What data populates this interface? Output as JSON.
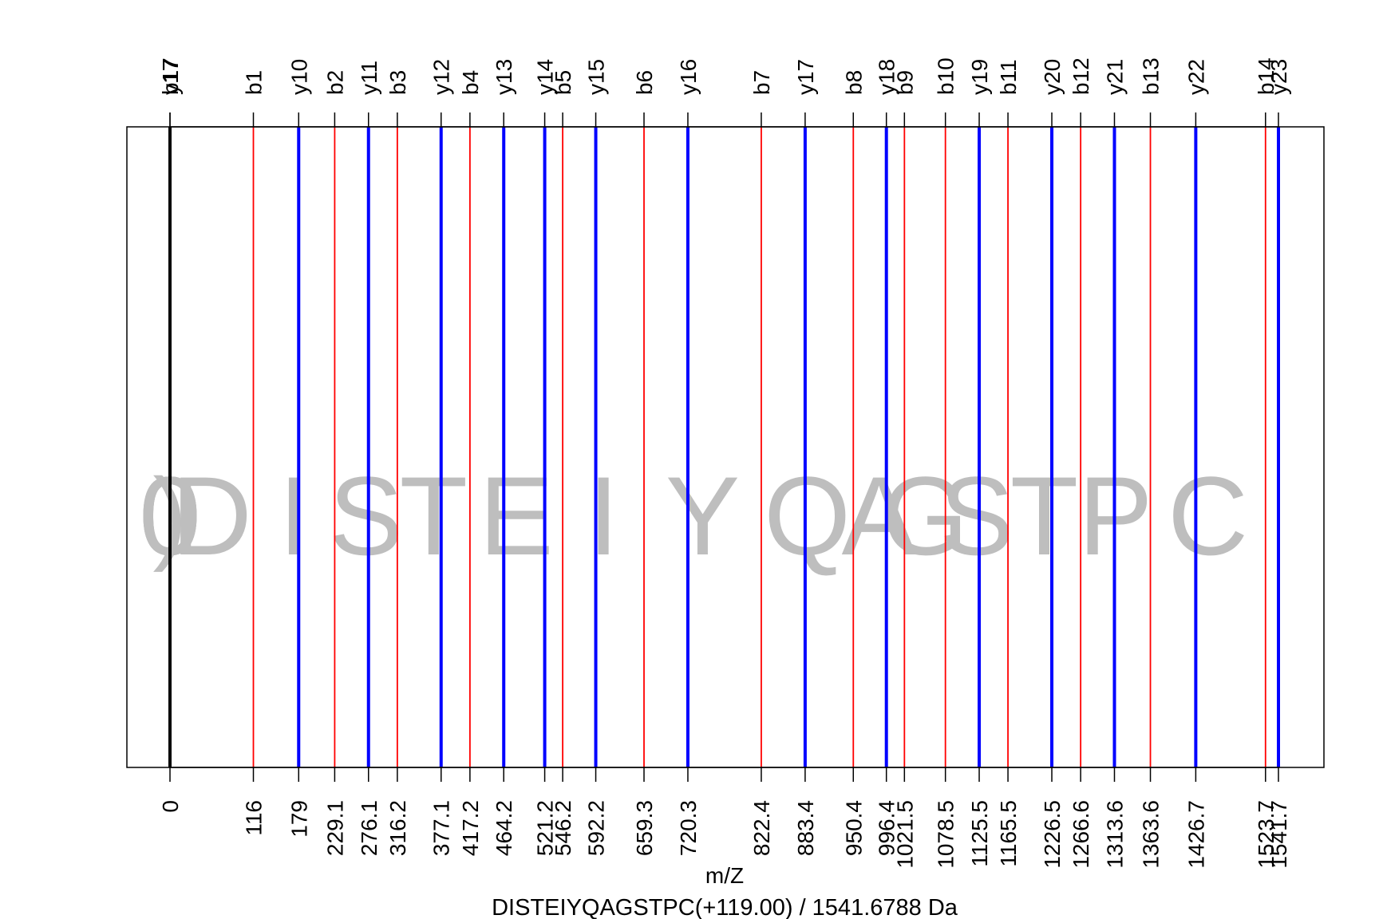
{
  "chart_data": {
    "type": "bar",
    "title": "DISTEIYQAGSTPC(+119.00) / 1541.6788 Da",
    "xlabel": "m/Z",
    "ylabel": "",
    "xlim": [
      0,
      1541.7
    ],
    "grid": false,
    "legend": "none",
    "series": [
      {
        "ion_type": "b",
        "color": "#ff0000",
        "peaks": [
          {
            "label": "b1",
            "mz": 116
          },
          {
            "label": "b2",
            "mz": 229.1
          },
          {
            "label": "b3",
            "mz": 316.2
          },
          {
            "label": "b4",
            "mz": 417.2
          },
          {
            "label": "b5",
            "mz": 546.2
          },
          {
            "label": "b6",
            "mz": 659.3
          },
          {
            "label": "b7",
            "mz": 822.4
          },
          {
            "label": "b8",
            "mz": 950.4
          },
          {
            "label": "b9",
            "mz": 1021.5
          },
          {
            "label": "b10",
            "mz": 1078.5
          },
          {
            "label": "b11",
            "mz": 1165.5
          },
          {
            "label": "b12",
            "mz": 1266.6
          },
          {
            "label": "b13",
            "mz": 1363.6
          },
          {
            "label": "b14",
            "mz": 1523.7
          }
        ]
      },
      {
        "ion_type": "y",
        "color": "#0000ff",
        "peaks": [
          {
            "label": "y17",
            "mz": 0
          },
          {
            "label": "y10",
            "mz": 179
          },
          {
            "label": "y11",
            "mz": 276.1
          },
          {
            "label": "y12",
            "mz": 377.1
          },
          {
            "label": "y13",
            "mz": 464.2
          },
          {
            "label": "y14",
            "mz": 521.2
          },
          {
            "label": "y15",
            "mz": 592.2
          },
          {
            "label": "y16",
            "mz": 720.3
          },
          {
            "label": "y17",
            "mz": 883.4
          },
          {
            "label": "y18",
            "mz": 996.4
          },
          {
            "label": "y19",
            "mz": 1125.5
          },
          {
            "label": "y20",
            "mz": 1226.5
          },
          {
            "label": "y21",
            "mz": 1313.6
          },
          {
            "label": "y22",
            "mz": 1426.7
          },
          {
            "label": "y23",
            "mz": 1541.7
          }
        ]
      },
      {
        "ion_type": "precursor",
        "color": "#000000",
        "peaks": [
          {
            "label": "b17",
            "mz": 0
          }
        ]
      }
    ],
    "residues": [
      {
        "letter": "0",
        "mz": 0
      },
      {
        "letter": "0",
        "mz": 0
      },
      {
        "letter": "0",
        "mz": 0
      },
      {
        "letter": ")",
        "mz": 0
      },
      {
        "letter": "D",
        "mz": 58
      },
      {
        "letter": "I",
        "mz": 172.6
      },
      {
        "letter": "S",
        "mz": 272.6
      },
      {
        "letter": "T",
        "mz": 366.7
      },
      {
        "letter": "E",
        "mz": 481.7
      },
      {
        "letter": "I",
        "mz": 602.8
      },
      {
        "letter": "Y",
        "mz": 740.9
      },
      {
        "letter": "Q",
        "mz": 886.4
      },
      {
        "letter": "A",
        "mz": 985.9
      },
      {
        "letter": "G",
        "mz": 1050
      },
      {
        "letter": "S",
        "mz": 1122
      },
      {
        "letter": "T",
        "mz": 1216
      },
      {
        "letter": "P",
        "mz": 1315.1
      },
      {
        "letter": "C",
        "mz": 1443.6
      }
    ],
    "x_tick_labels": [
      "0",
      "116",
      "179",
      "229.1",
      "276.1",
      "316.2",
      "377.1",
      "417.2",
      "464.2",
      "521.2",
      "546.2",
      "592.2",
      "659.3",
      "720.3",
      "822.4",
      "883.4",
      "950.4",
      "996.4",
      "1021.5",
      "1078.5",
      "1125.5",
      "1165.5",
      "1226.5",
      "1266.6",
      "1313.6",
      "1363.6",
      "1426.7",
      "1523.7",
      "1541.7"
    ]
  }
}
